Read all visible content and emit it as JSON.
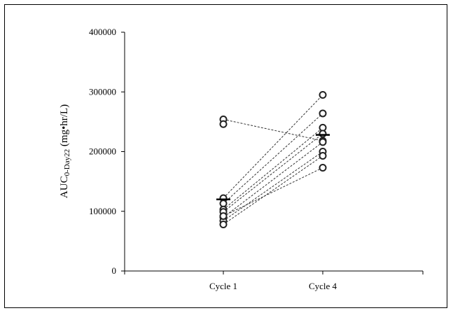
{
  "chart_data": {
    "type": "scatter",
    "title": "",
    "ylabel": {
      "main": "AUC",
      "subscript": "0-Day22",
      "units": " (mg•hr/L)"
    },
    "ylim": [
      0,
      400000
    ],
    "yticks": [
      "0",
      "100000",
      "200000",
      "300000",
      "400000"
    ],
    "categories": [
      "Cycle 1",
      "Cycle 4"
    ],
    "grid": false,
    "legend": "none",
    "marker_color": "#222222",
    "pairs": [
      [
        254000,
        218000
      ],
      [
        122000,
        295000
      ],
      [
        113000,
        264000
      ],
      [
        103000,
        240000
      ],
      [
        99000,
        230000
      ],
      [
        90000,
        216000
      ],
      [
        84000,
        200000
      ],
      [
        78000,
        193000
      ],
      [
        92000,
        173000
      ]
    ],
    "cycle1_extra": [
      246000
    ],
    "means": [
      120000,
      228000
    ]
  }
}
